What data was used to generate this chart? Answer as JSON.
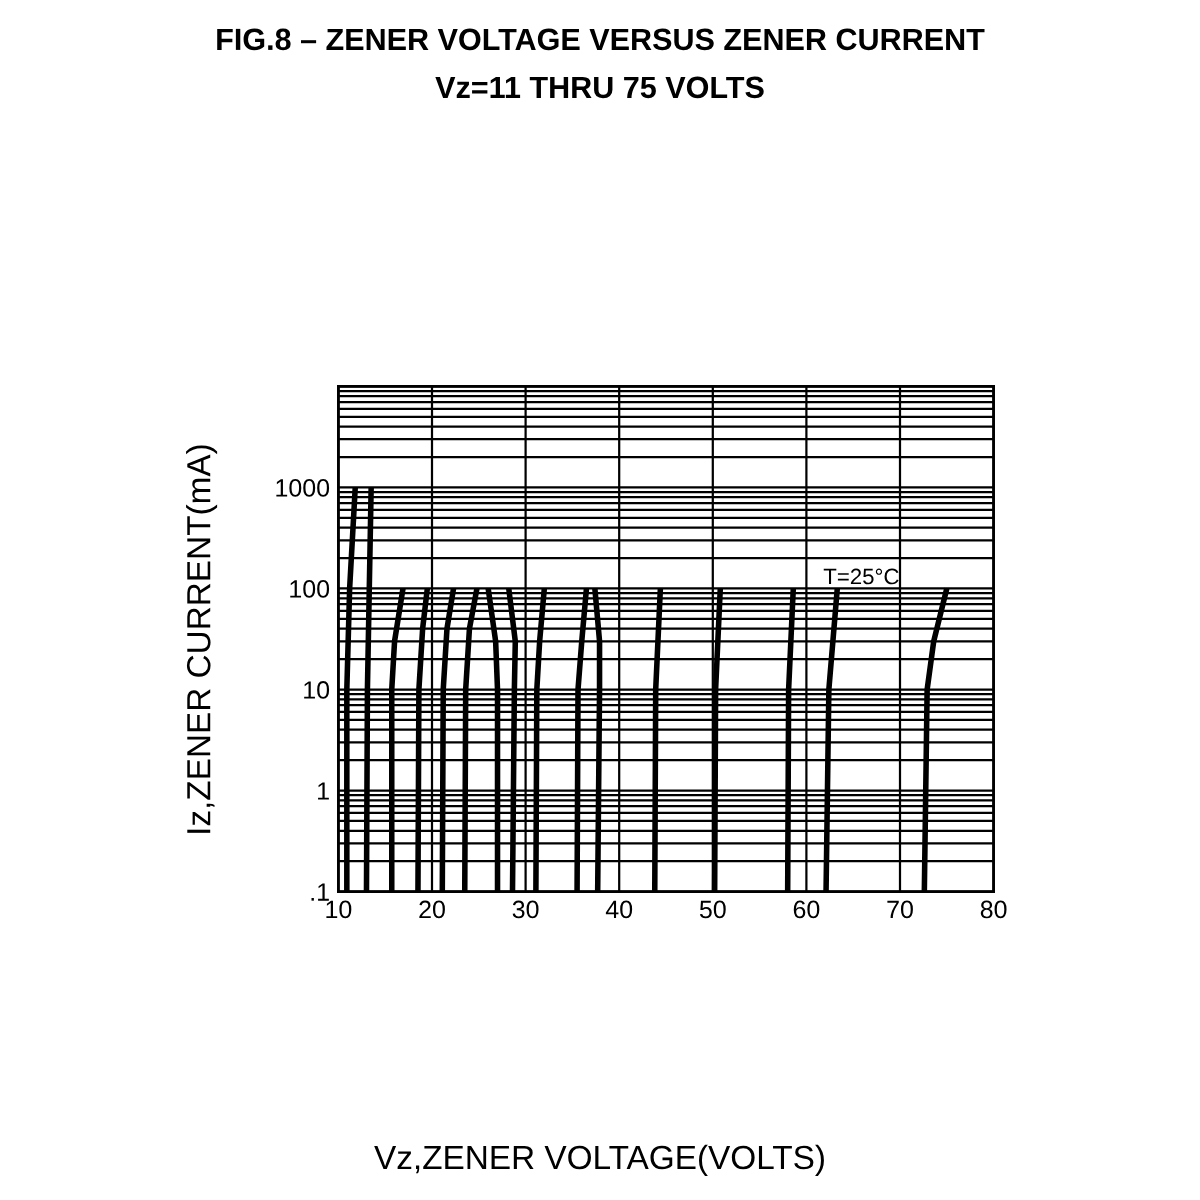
{
  "chart_data": {
    "type": "line",
    "title": "FIG.8 – ZENER VOLTAGE VERSUS ZENER CURRENT",
    "subtitle": "Vz=11 THRU 75 VOLTS",
    "ylabel": "Iz,ZENER CURRENT(mA)",
    "annotations": [
      "T=25°C",
      "Vz,ZENER VOLTAGE(VOLTS)"
    ],
    "log": "y",
    "xlim": [
      10,
      80
    ],
    "ylim": [
      0.1,
      10000
    ],
    "xticks": [
      10,
      20,
      30,
      40,
      50,
      60,
      70,
      80
    ],
    "yticks": [
      {
        "value": 0.1,
        "label": ".1"
      },
      1,
      10,
      100,
      1000,
      {
        "value": 10000,
        "label": null
      }
    ],
    "grid": true,
    "legend": false,
    "marker": "none",
    "line_style": "solid",
    "series": [
      {
        "color": "#000000",
        "x": [
          10.9,
          10.9,
          11.2,
          11.8
        ],
        "values": [
          0.1,
          10,
          100,
          1000
        ]
      },
      {
        "color": "#000000",
        "x": [
          13.0,
          13.1,
          13.3,
          13.5
        ],
        "values": [
          0.1,
          10,
          100,
          1000
        ]
      },
      {
        "color": "#000000",
        "x": [
          15.7,
          15.7,
          16.0,
          16.9
        ],
        "values": [
          0.1,
          10,
          30,
          100
        ]
      },
      {
        "color": "#000000",
        "x": [
          18.5,
          18.6,
          19.0,
          19.5
        ],
        "values": [
          0.1,
          10,
          40,
          100
        ]
      },
      {
        "color": "#000000",
        "x": [
          21.1,
          21.2,
          21.6,
          22.3
        ],
        "values": [
          0.1,
          10,
          40,
          100
        ]
      },
      {
        "color": "#000000",
        "x": [
          23.5,
          23.6,
          24.0,
          24.8
        ],
        "values": [
          0.1,
          10,
          40,
          100
        ]
      },
      {
        "color": "#000000",
        "x": [
          27.0,
          27.0,
          26.8,
          26.0
        ],
        "values": [
          0.1,
          10,
          30,
          100
        ]
      },
      {
        "color": "#000000",
        "x": [
          28.6,
          28.8,
          28.9,
          28.2
        ],
        "values": [
          0.1,
          10,
          30,
          100
        ]
      },
      {
        "color": "#000000",
        "x": [
          31.1,
          31.2,
          31.5,
          32.0
        ],
        "values": [
          0.1,
          10,
          30,
          100
        ]
      },
      {
        "color": "#000000",
        "x": [
          35.5,
          35.6,
          36.0,
          36.5
        ],
        "values": [
          0.1,
          10,
          30,
          100
        ]
      },
      {
        "color": "#000000",
        "x": [
          37.7,
          37.9,
          37.9,
          37.4
        ],
        "values": [
          0.1,
          10,
          30,
          100
        ]
      },
      {
        "color": "#000000",
        "x": [
          43.8,
          43.9,
          44.4
        ],
        "values": [
          0.1,
          10,
          100
        ]
      },
      {
        "color": "#000000",
        "x": [
          50.2,
          50.3,
          50.8
        ],
        "values": [
          0.1,
          10,
          100
        ]
      },
      {
        "color": "#000000",
        "x": [
          58.0,
          58.1,
          58.6
        ],
        "values": [
          0.1,
          10,
          100
        ]
      },
      {
        "color": "#000000",
        "x": [
          62.1,
          62.4,
          63.3
        ],
        "values": [
          0.1,
          10,
          100
        ]
      },
      {
        "color": "#000000",
        "x": [
          72.6,
          72.9,
          73.6,
          75.0
        ],
        "values": [
          0.1,
          10,
          30,
          100
        ]
      }
    ]
  }
}
